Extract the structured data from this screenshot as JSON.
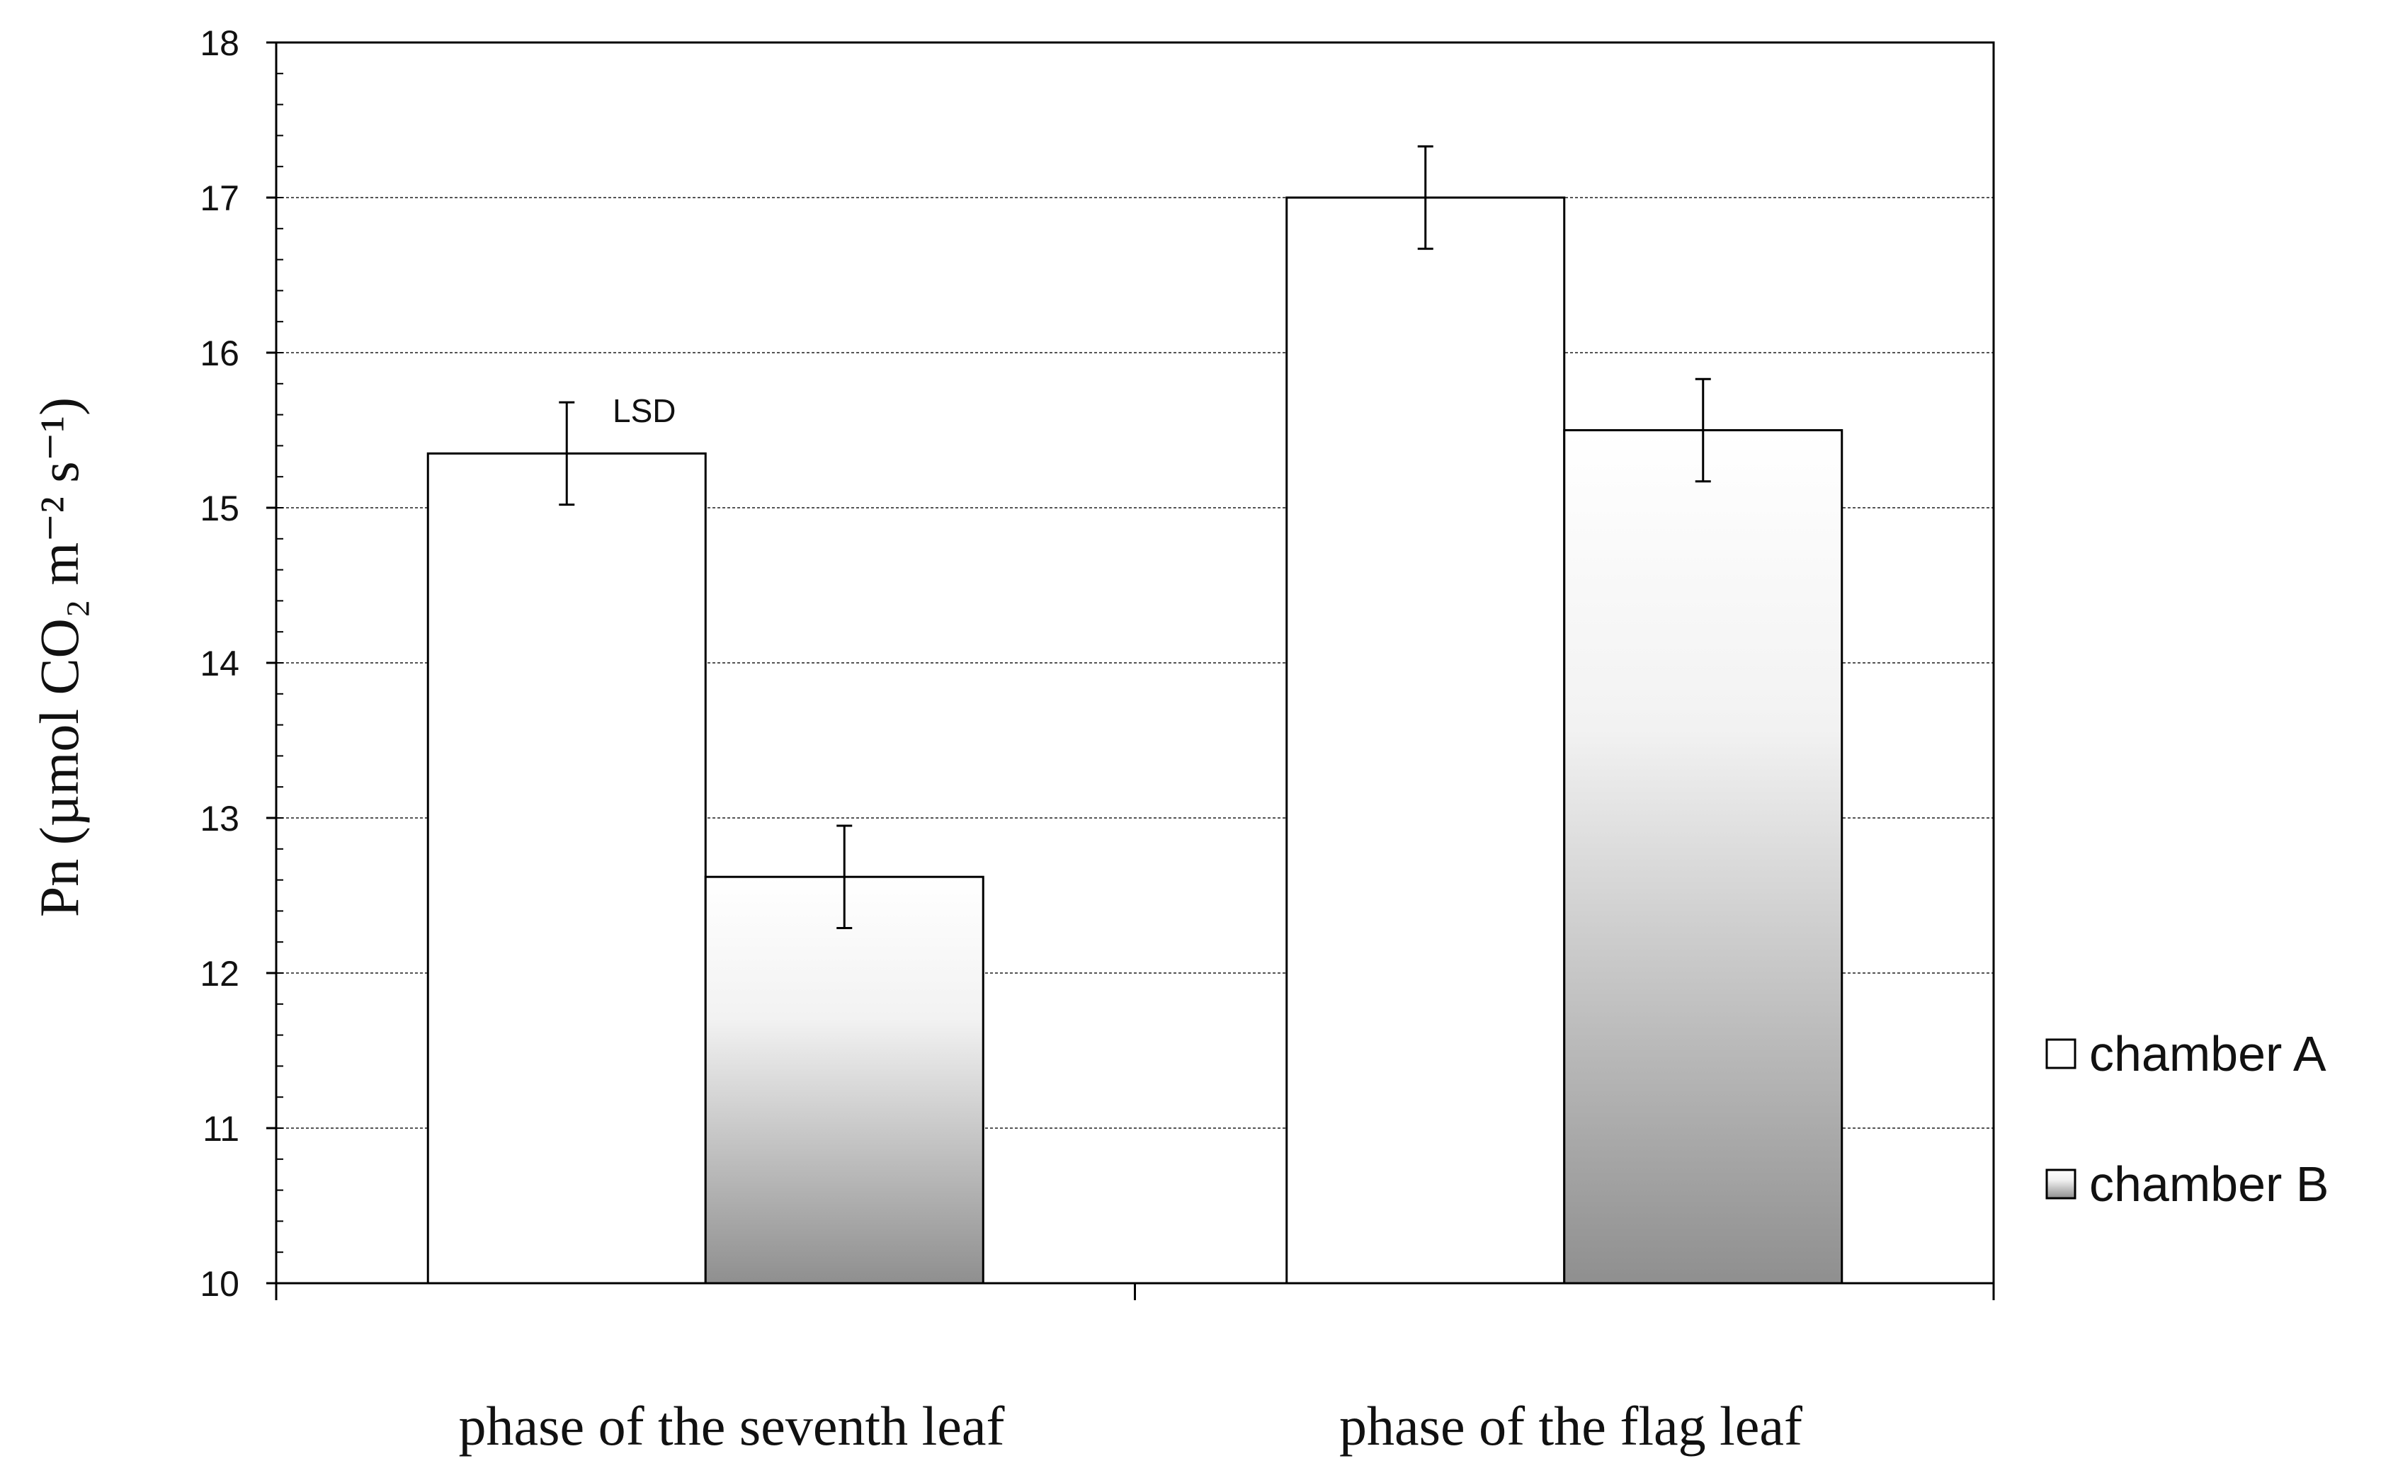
{
  "chart_data": {
    "type": "bar",
    "categories": [
      "phase of the seventh leaf",
      "phase of the flag leaf"
    ],
    "series": [
      {
        "name": "chamber A",
        "values": [
          15.35,
          17.0
        ],
        "errors": [
          0.33,
          0.33
        ],
        "fill": "white"
      },
      {
        "name": "chamber B",
        "values": [
          12.62,
          15.5
        ],
        "errors": [
          0.33,
          0.33
        ],
        "fill": "gradient"
      }
    ],
    "ylabel": "Pn (µmol CO₂ m⁻² s⁻¹)",
    "ylim": [
      10,
      18
    ],
    "yticks": [
      "10",
      "11",
      "12",
      "13",
      "14",
      "15",
      "16",
      "17",
      "18"
    ],
    "grid": true,
    "legend_position": "right",
    "annotation": {
      "text": "LSD",
      "series": 0,
      "category": 0
    },
    "colors": {
      "bar_stroke": "#000000",
      "grid": "#555555",
      "gradient_top": "#ffffff",
      "gradient_bottom": "#8f8f8f"
    }
  }
}
